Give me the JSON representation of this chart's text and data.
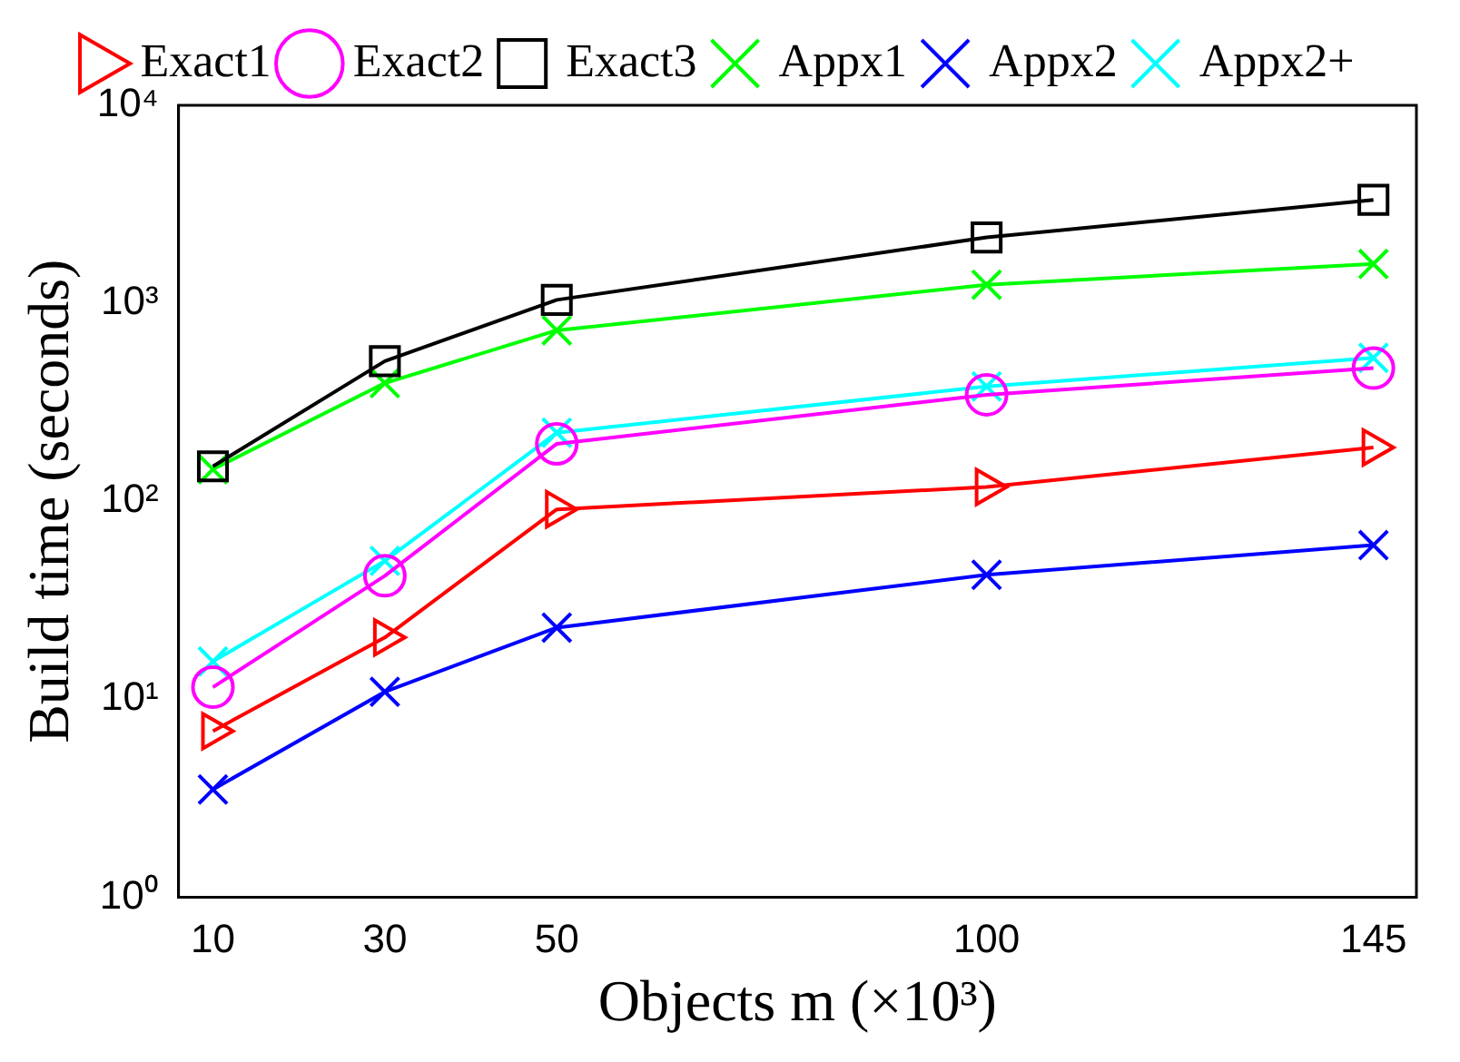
{
  "chart_data": {
    "type": "line",
    "xlabel": "Objects m (×10³)",
    "ylabel": "Build time (seconds)",
    "x": [
      10,
      30,
      50,
      100,
      145
    ],
    "series": [
      {
        "name": "Exact1",
        "color": "#ff0000",
        "marker": "triangle",
        "values": [
          6.9,
          20.5,
          91,
          118,
          187
        ]
      },
      {
        "name": "Exact2",
        "color": "#ff00ff",
        "marker": "circle",
        "values": [
          11.5,
          42,
          195,
          345,
          470
        ]
      },
      {
        "name": "Exact3",
        "color": "#000000",
        "marker": "square",
        "values": [
          150,
          510,
          1040,
          2150,
          3330
        ]
      },
      {
        "name": "Appx1",
        "color": "#00ff00",
        "marker": "cross",
        "values": [
          145,
          395,
          730,
          1240,
          1580
        ]
      },
      {
        "name": "Appx2",
        "color": "#0000ff",
        "marker": "cross",
        "values": [
          3.5,
          10.9,
          23,
          42.5,
          60
        ]
      },
      {
        "name": "Appx2+",
        "color": "#00ffff",
        "marker": "cross",
        "values": [
          15.5,
          50,
          222,
          380,
          530
        ]
      }
    ],
    "xlim": [
      6,
      150
    ],
    "xticks": [
      10,
      30,
      50,
      100,
      145
    ],
    "ylim": [
      1,
      10000
    ],
    "yticks": [
      {
        "value": 1,
        "label": "10⁰"
      },
      {
        "value": 10,
        "label": "10¹"
      },
      {
        "value": 100,
        "label": "10²"
      },
      {
        "value": 1000,
        "label": "10³"
      },
      {
        "value": 10000,
        "label": "10⁴"
      }
    ],
    "log": "y",
    "grid": false,
    "legend": "top",
    "line_style": "solid"
  }
}
